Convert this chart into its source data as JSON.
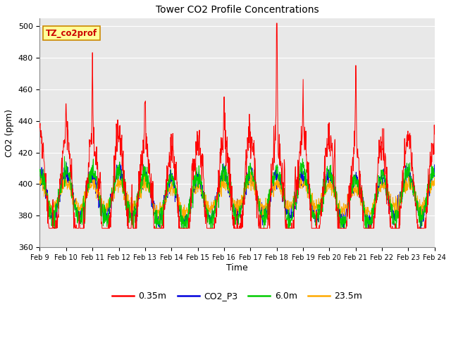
{
  "title": "Tower CO2 Profile Concentrations",
  "xlabel": "Time",
  "ylabel": "CO2 (ppm)",
  "ylim": [
    360,
    505
  ],
  "yticks": [
    360,
    380,
    400,
    420,
    440,
    460,
    480,
    500
  ],
  "x_labels": [
    "Feb 9",
    "Feb 10",
    "Feb 11",
    "Feb 12",
    "Feb 13",
    "Feb 14",
    "Feb 15",
    "Feb 16",
    "Feb 17",
    "Feb 18",
    "Feb 19",
    "Feb 20",
    "Feb 21",
    "Feb 22",
    "Feb 23",
    "Feb 24"
  ],
  "annotation_text": "TZ_co2prof",
  "annotation_bg": "#ffff99",
  "annotation_border": "#cc8800",
  "fig_bg": "#ffffff",
  "axes_bg": "#e8e8e8",
  "grid_color": "#ffffff",
  "series_colors": [
    "#ff0000",
    "#0000dd",
    "#00cc00",
    "#ffaa00"
  ],
  "series_labels": [
    "0.35m",
    "CO2_P3",
    "6.0m",
    "23.5m"
  ],
  "n_points": 1440,
  "seed": 12345
}
